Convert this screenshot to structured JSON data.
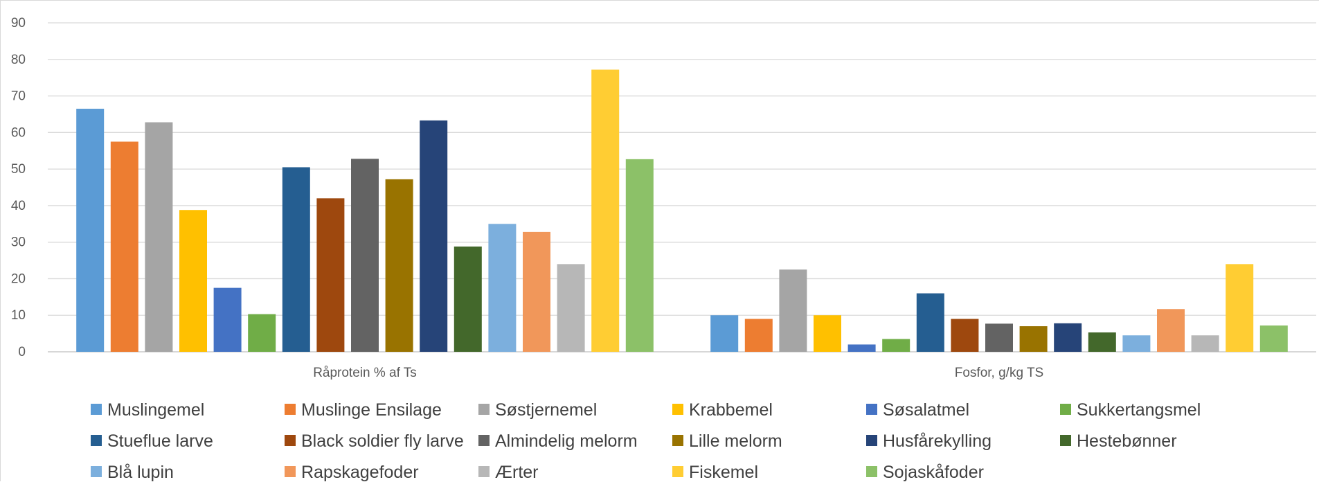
{
  "chart_data": {
    "type": "bar",
    "ylim": [
      0,
      90
    ],
    "yticks": [
      0,
      10,
      20,
      30,
      40,
      50,
      60,
      70,
      80,
      90
    ],
    "grid": true,
    "legend_position": "bottom",
    "categories": [
      "Råprotein % af Ts",
      "Fosfor, g/kg TS"
    ],
    "series": [
      {
        "name": "Muslingemel",
        "color": "#5B9BD5",
        "values": [
          66.5,
          10
        ]
      },
      {
        "name": "Muslinge Ensilage",
        "color": "#ED7D31",
        "values": [
          57.5,
          9
        ]
      },
      {
        "name": "Søstjernemel",
        "color": "#A5A5A5",
        "values": [
          62.8,
          22.5
        ]
      },
      {
        "name": "Krabbemel",
        "color": "#FFC000",
        "values": [
          38.8,
          10
        ]
      },
      {
        "name": "Søsalatmel",
        "color": "#4472C4",
        "values": [
          17.5,
          2
        ]
      },
      {
        "name": "Sukkertangsmel",
        "color": "#70AD47",
        "values": [
          10.3,
          3.5
        ]
      },
      {
        "name": "Stueflue larve",
        "color": "#255E91",
        "values": [
          50.5,
          16
        ]
      },
      {
        "name": "Black soldier fly larve",
        "color": "#9E480E",
        "values": [
          42,
          9
        ]
      },
      {
        "name": "Almindelig melorm",
        "color": "#636363",
        "values": [
          52.8,
          7.7
        ]
      },
      {
        "name": "Lille melorm",
        "color": "#997300",
        "values": [
          47.2,
          7
        ]
      },
      {
        "name": "Husfårekylling",
        "color": "#264478",
        "values": [
          63.3,
          7.8
        ]
      },
      {
        "name": "Hestebønner",
        "color": "#43682B",
        "values": [
          28.8,
          5.3
        ]
      },
      {
        "name": "Blå lupin",
        "color": "#7CAFDD",
        "values": [
          35,
          4.5
        ]
      },
      {
        "name": "Rapskagefoder",
        "color": "#F1975A",
        "values": [
          32.8,
          11.7
        ]
      },
      {
        "name": "Ærter",
        "color": "#B7B7B7",
        "values": [
          24,
          4.5
        ]
      },
      {
        "name": "Fiskemel",
        "color": "#FFCD33",
        "values": [
          77.2,
          24
        ]
      },
      {
        "name": "Sojaskåfoder",
        "color": "#8CC168",
        "values": [
          52.7,
          7.2
        ]
      }
    ]
  }
}
